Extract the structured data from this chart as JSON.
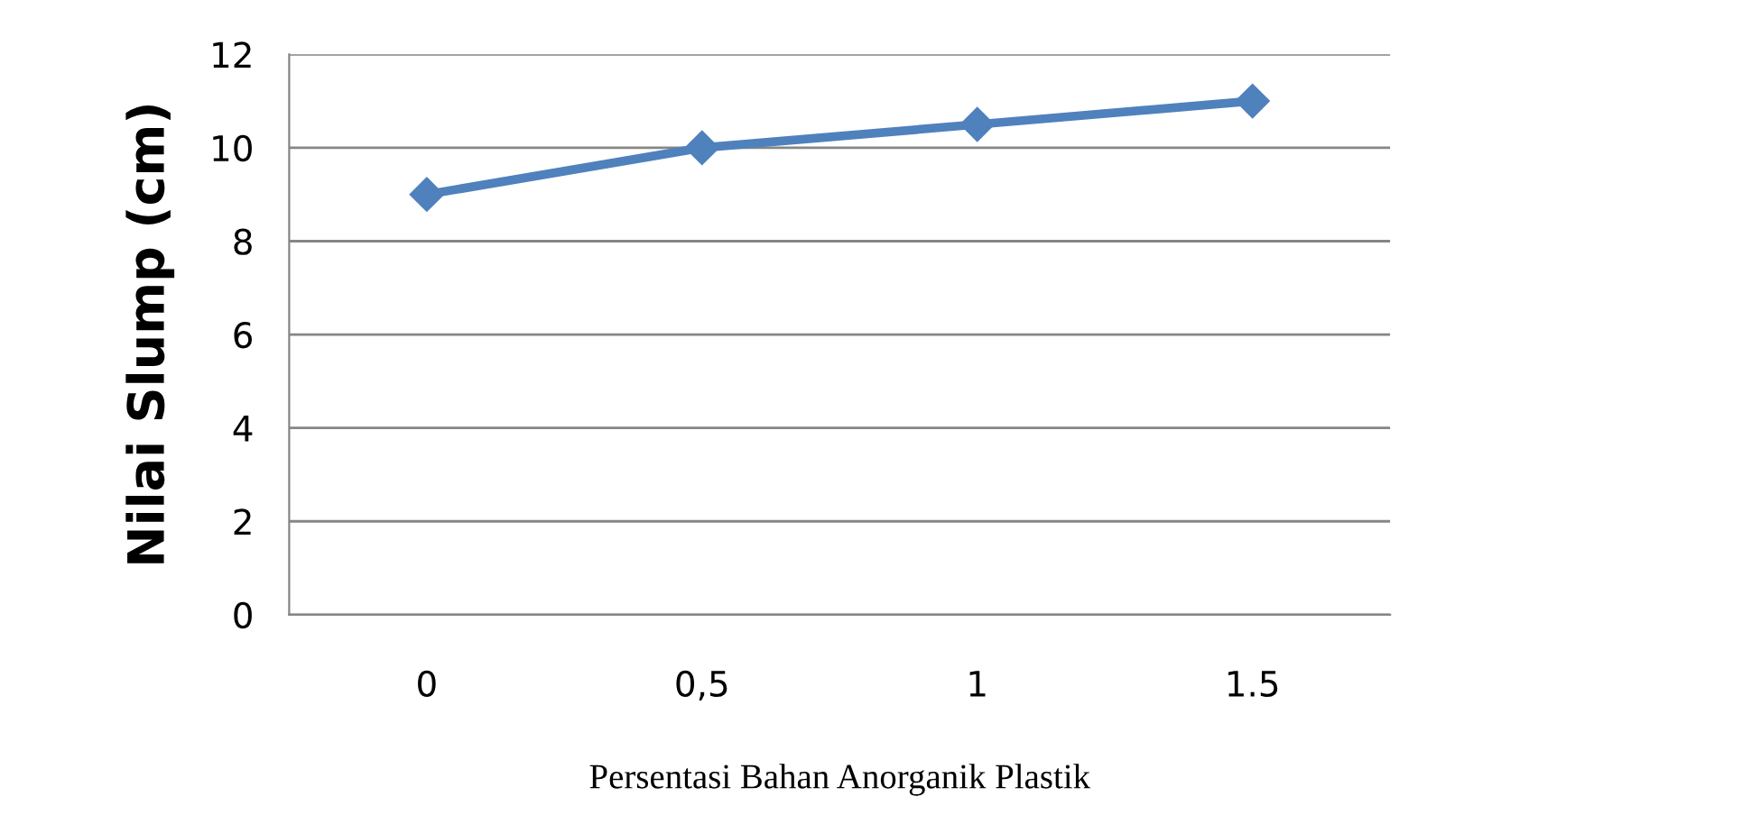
{
  "chart_data": {
    "type": "line",
    "xlabel": "Persentasi Bahan Anorganik Plastik",
    "ylabel": "Nilai Slump (cm)",
    "categories": [
      "0",
      "0,5",
      "1",
      "1.5"
    ],
    "series": [
      {
        "color": "#4f81bd",
        "values": [
          9,
          10,
          10.5,
          11
        ]
      }
    ],
    "ylim": [
      0,
      12
    ],
    "yticks": [
      0,
      2,
      4,
      6,
      8,
      10,
      12
    ],
    "grid": "y",
    "marker": "diamond",
    "line_style": "solid",
    "legend": false
  }
}
